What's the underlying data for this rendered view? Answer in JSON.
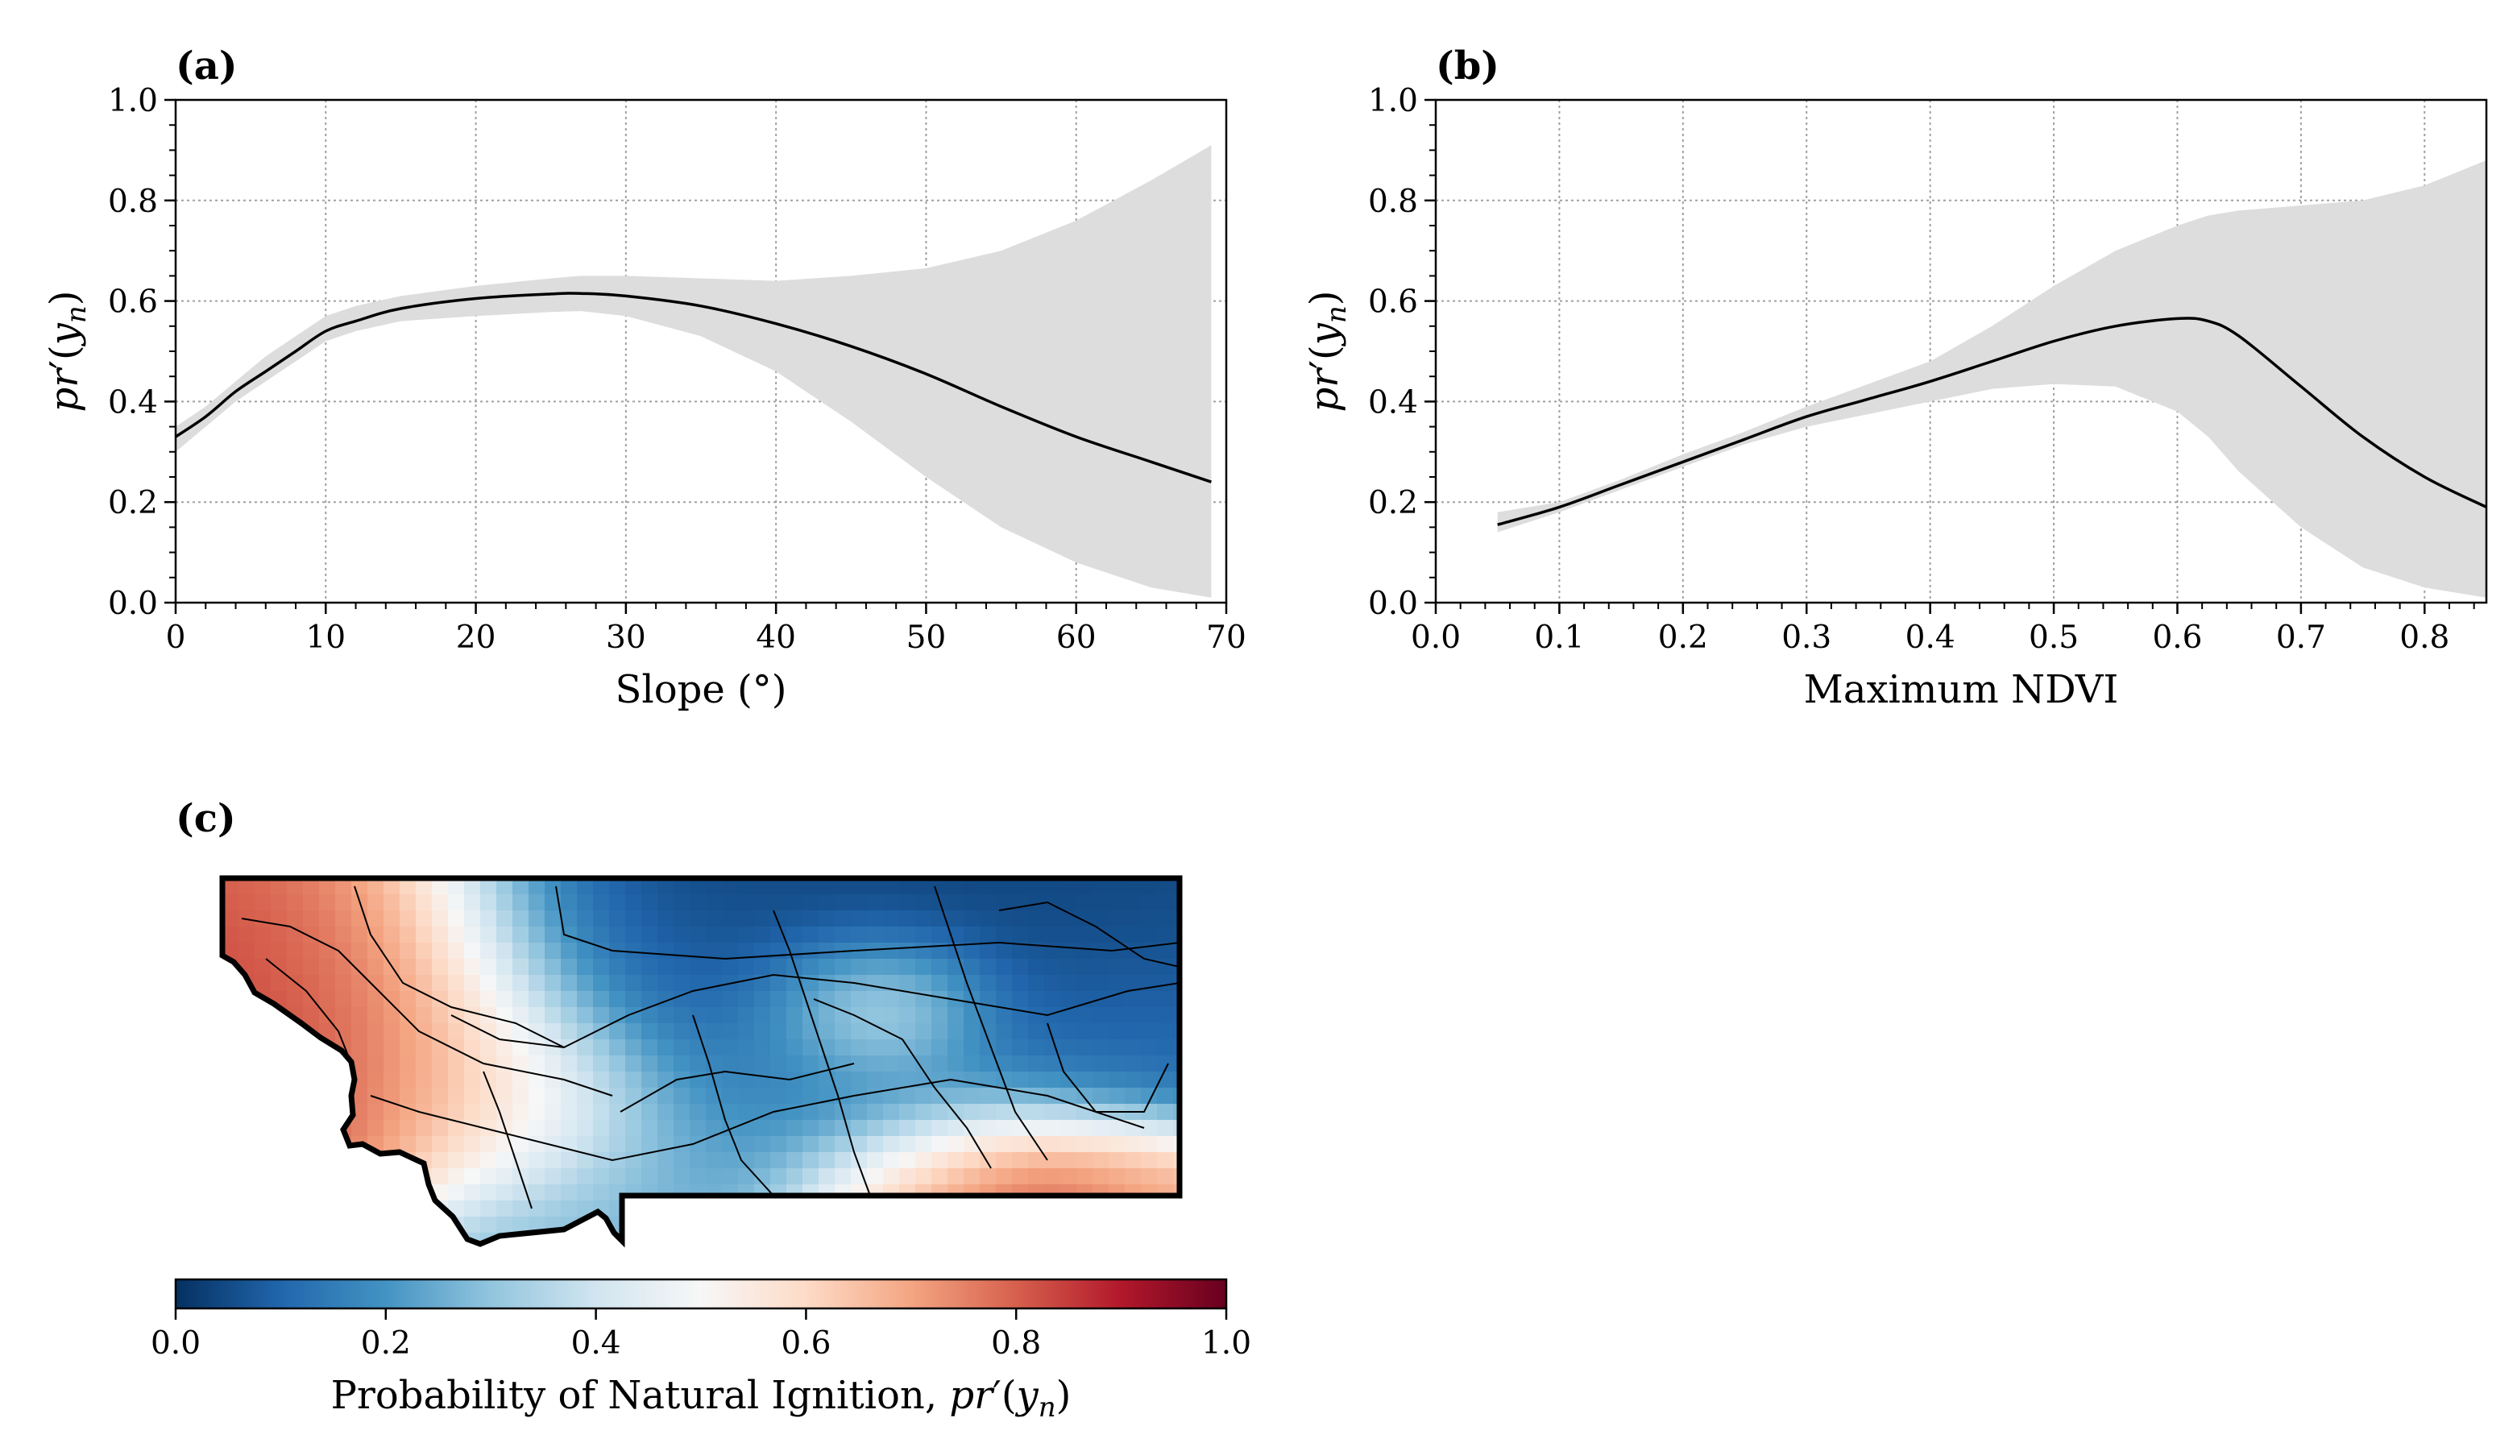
{
  "chart_data": [
    {
      "panel": "(a)",
      "type": "line",
      "xlabel": "Slope (°)",
      "ylabel": "pr′(yₙ)",
      "xlim": [
        0,
        70
      ],
      "ylim": [
        0.0,
        1.0
      ],
      "xticks": [
        "0",
        "10",
        "20",
        "30",
        "40",
        "50",
        "60",
        "70"
      ],
      "yticks": [
        "0.0",
        "0.2",
        "0.4",
        "0.6",
        "0.8",
        "1.0"
      ],
      "grid": true,
      "x": [
        0,
        2,
        4,
        6,
        8,
        10,
        12,
        15,
        20,
        25,
        27,
        30,
        35,
        40,
        45,
        50,
        55,
        60,
        65,
        69
      ],
      "y": [
        0.33,
        0.37,
        0.42,
        0.46,
        0.5,
        0.54,
        0.56,
        0.585,
        0.605,
        0.614,
        0.615,
        0.61,
        0.59,
        0.555,
        0.51,
        0.455,
        0.39,
        0.33,
        0.28,
        0.24
      ],
      "lower": [
        0.3,
        0.35,
        0.4,
        0.44,
        0.48,
        0.52,
        0.54,
        0.56,
        0.57,
        0.578,
        0.58,
        0.57,
        0.53,
        0.46,
        0.36,
        0.25,
        0.15,
        0.08,
        0.03,
        0.01
      ],
      "upper": [
        0.35,
        0.39,
        0.44,
        0.49,
        0.53,
        0.57,
        0.59,
        0.61,
        0.63,
        0.645,
        0.65,
        0.65,
        0.645,
        0.64,
        0.65,
        0.665,
        0.7,
        0.76,
        0.84,
        0.91
      ]
    },
    {
      "panel": "(b)",
      "type": "line",
      "xlabel": "Maximum NDVI",
      "ylabel": "pr′(yₙ)",
      "xlim": [
        0.0,
        0.85
      ],
      "ylim": [
        0.0,
        1.0
      ],
      "xticks": [
        "0.0",
        "0.1",
        "0.2",
        "0.3",
        "0.4",
        "0.5",
        "0.6",
        "0.7",
        "0.8"
      ],
      "yticks": [
        "0.0",
        "0.2",
        "0.4",
        "0.6",
        "0.8",
        "1.0"
      ],
      "grid": true,
      "x": [
        0.05,
        0.1,
        0.15,
        0.2,
        0.25,
        0.3,
        0.35,
        0.4,
        0.45,
        0.5,
        0.55,
        0.6,
        0.625,
        0.65,
        0.7,
        0.75,
        0.8,
        0.85
      ],
      "y": [
        0.155,
        0.19,
        0.235,
        0.28,
        0.325,
        0.37,
        0.405,
        0.44,
        0.48,
        0.52,
        0.55,
        0.565,
        0.56,
        0.53,
        0.43,
        0.33,
        0.25,
        0.19
      ],
      "lower": [
        0.14,
        0.18,
        0.225,
        0.27,
        0.315,
        0.35,
        0.375,
        0.4,
        0.425,
        0.435,
        0.43,
        0.38,
        0.33,
        0.26,
        0.15,
        0.07,
        0.03,
        0.01
      ],
      "upper": [
        0.18,
        0.2,
        0.245,
        0.295,
        0.34,
        0.39,
        0.435,
        0.48,
        0.55,
        0.63,
        0.7,
        0.75,
        0.77,
        0.78,
        0.79,
        0.8,
        0.83,
        0.88
      ]
    },
    {
      "panel": "(c)",
      "type": "heatmap",
      "colorbar_label": "Probability of Natural Ignition, pr′(yₙ)",
      "clim": [
        0.0,
        1.0
      ],
      "colorbar_ticks": [
        "0.0",
        "0.2",
        "0.4",
        "0.6",
        "0.8",
        "1.0"
      ],
      "colormap": "RdBu_r",
      "hotspots": [
        {
          "lon": 0.05,
          "lat": 0.55,
          "value": 0.88,
          "radius": 0.12
        },
        {
          "lon": 0.08,
          "lat": 0.35,
          "value": 0.85,
          "radius": 0.12
        },
        {
          "lon": 0.2,
          "lat": 0.45,
          "value": 0.72,
          "radius": 0.12
        },
        {
          "lon": 0.1,
          "lat": 0.12,
          "value": 0.82,
          "radius": 0.14
        },
        {
          "lon": 0.3,
          "lat": 0.6,
          "value": 0.62,
          "radius": 0.1
        },
        {
          "lon": 0.68,
          "lat": 0.35,
          "value": 0.68,
          "radius": 0.07
        },
        {
          "lon": 0.85,
          "lat": 0.88,
          "value": 0.92,
          "radius": 0.1
        },
        {
          "lon": 0.72,
          "lat": 0.9,
          "value": 0.72,
          "radius": 0.08
        },
        {
          "lon": 0.97,
          "lat": 0.88,
          "value": 0.65,
          "radius": 0.07
        },
        {
          "lon": 0.55,
          "lat": 0.1,
          "value": 0.02,
          "radius": 0.2
        },
        {
          "lon": 0.85,
          "lat": 0.12,
          "value": 0.05,
          "radius": 0.18
        },
        {
          "lon": 0.45,
          "lat": 0.2,
          "value": 0.08,
          "radius": 0.15
        },
        {
          "lon": 0.6,
          "lat": 0.6,
          "value": 0.22,
          "radius": 0.15
        },
        {
          "lon": 0.95,
          "lat": 0.45,
          "value": 0.12,
          "radius": 0.1
        },
        {
          "lon": 0.4,
          "lat": 0.95,
          "value": 0.28,
          "radius": 0.12
        }
      ]
    }
  ],
  "colors": {
    "line": "#000000",
    "band": "#dddddd",
    "grid": "#a0a0a0",
    "map_outline": "#000000"
  }
}
